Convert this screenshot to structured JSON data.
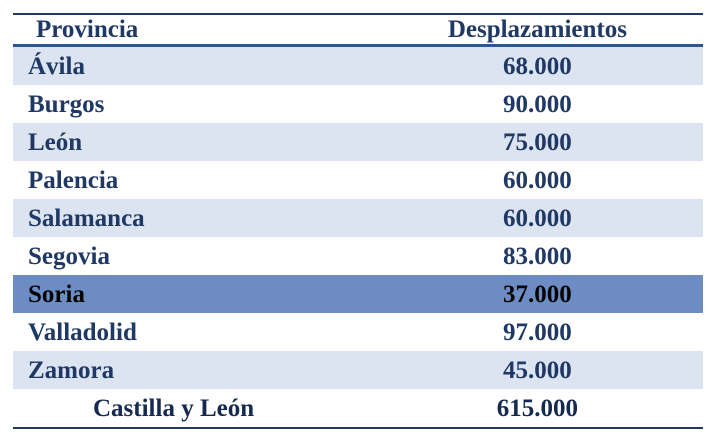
{
  "header": {
    "col1": "Provincia",
    "col2": "Desplazamientos"
  },
  "rows": [
    {
      "provincia": "Ávila",
      "desplazamientos": "68.000",
      "highlight": false
    },
    {
      "provincia": "Burgos",
      "desplazamientos": "90.000",
      "highlight": false
    },
    {
      "provincia": "León",
      "desplazamientos": "75.000",
      "highlight": false
    },
    {
      "provincia": "Palencia",
      "desplazamientos": "60.000",
      "highlight": false
    },
    {
      "provincia": "Salamanca",
      "desplazamientos": "60.000",
      "highlight": false
    },
    {
      "provincia": "Segovia",
      "desplazamientos": "83.000",
      "highlight": false
    },
    {
      "provincia": "Soria",
      "desplazamientos": "37.000",
      "highlight": true
    },
    {
      "provincia": "Valladolid",
      "desplazamientos": "97.000",
      "highlight": false
    },
    {
      "provincia": "Zamora",
      "desplazamientos": "45.000",
      "highlight": false
    }
  ],
  "total": {
    "provincia": "Castilla y León",
    "desplazamientos": "615.000"
  },
  "colors": {
    "text_navy": "#1f3864",
    "total_text": "#16294f",
    "stripe_blue": "#dbe4f0",
    "highlight_blue": "#6d8cc3",
    "highlight_text": "#050505",
    "header_rule": "#2b5693",
    "frame_line": "#203a60"
  }
}
